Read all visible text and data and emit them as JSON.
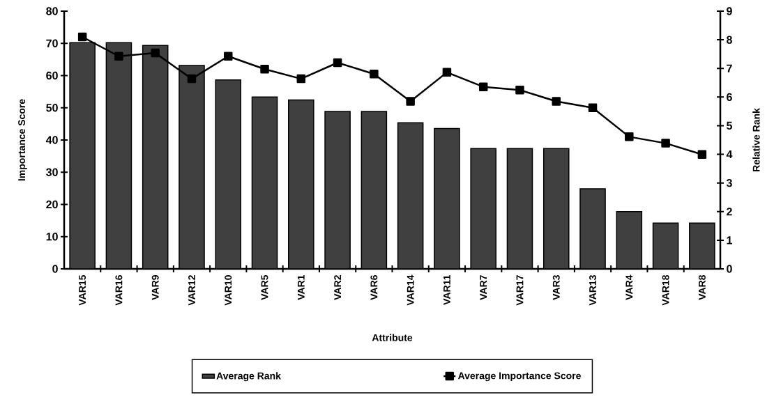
{
  "chart_data": {
    "type": "bar",
    "xlabel": "Attribute",
    "ylabel": "Importance Score",
    "y2label": "Relative Rank",
    "categories": [
      "VAR15",
      "VAR16",
      "VAR9",
      "VAR12",
      "VAR10",
      "VAR5",
      "VAR1",
      "VAR2",
      "VAR6",
      "VAR14",
      "VAR11",
      "VAR7",
      "VAR17",
      "VAR3",
      "VAR13",
      "VAR4",
      "VAR18",
      "VAR8"
    ],
    "series": [
      {
        "name": "Average Rank",
        "axis": "y2",
        "color": "#404040",
        "values": [
          7.9,
          7.9,
          7.8,
          7.1,
          6.6,
          6.0,
          5.9,
          5.5,
          5.5,
          5.1,
          4.9,
          4.2,
          4.2,
          4.2,
          2.8,
          2.0,
          1.6,
          1.6
        ]
      },
      {
        "name": "Average Importance Score",
        "type": "line",
        "color": "#000000",
        "values": [
          72,
          66,
          67,
          59,
          66,
          62,
          59,
          64,
          60.5,
          52,
          61,
          56.5,
          55.5,
          52,
          50,
          41,
          39,
          35.5
        ]
      }
    ],
    "ylim": [
      0,
      80
    ],
    "yticks": [
      0,
      10,
      20,
      30,
      40,
      50,
      60,
      70,
      80
    ],
    "y2lim": [
      0,
      9
    ],
    "y2ticks": [
      0,
      1,
      2,
      3,
      4,
      5,
      6,
      7,
      8,
      9
    ],
    "legend": "bottom",
    "marker": "square",
    "line_style": "solid"
  }
}
